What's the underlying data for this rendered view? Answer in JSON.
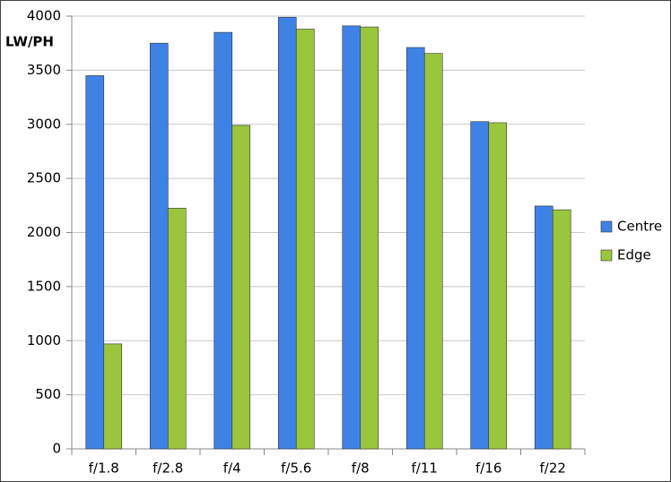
{
  "chart_data": {
    "type": "bar",
    "y_label": "LW/PH",
    "categories": [
      "f/1.8",
      "f/2.8",
      "f/4",
      "f/5.6",
      "f/8",
      "f/11",
      "f/16",
      "f/22"
    ],
    "series": [
      {
        "name": "Centre",
        "color": "#3f82e6",
        "values": [
          3450,
          3750,
          3850,
          3990,
          3910,
          3710,
          3025,
          2245
        ]
      },
      {
        "name": "Edge",
        "color": "#9bc53d",
        "values": [
          970,
          2225,
          2990,
          3880,
          3900,
          3655,
          3015,
          2210
        ]
      }
    ],
    "ylim": [
      0,
      4000
    ],
    "yticks": [
      0,
      500,
      1000,
      1500,
      2000,
      2500,
      3000,
      3500,
      4000
    ],
    "grid": true,
    "legend": "right"
  }
}
